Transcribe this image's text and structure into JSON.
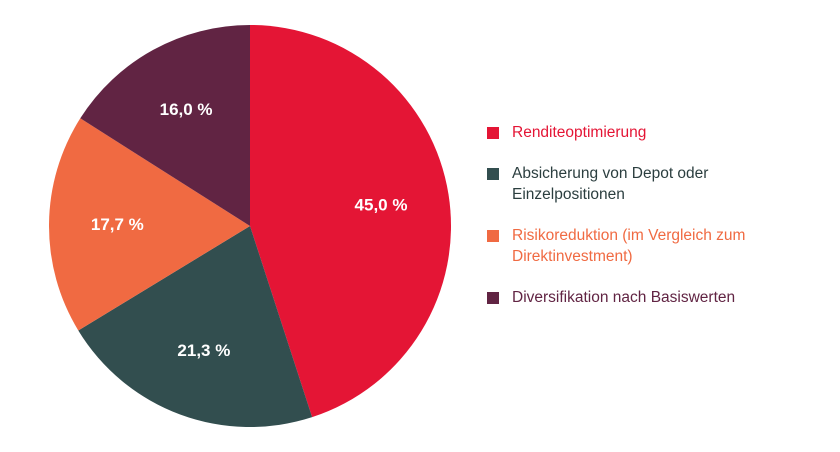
{
  "chart_data": {
    "type": "pie",
    "slices": [
      {
        "label": "Renditeoptimierung",
        "value": 45.0,
        "display": "45,0 %",
        "color": "#e41535",
        "legend_text_color": "#e41535"
      },
      {
        "label": "Absicherung von Depot oder Einzelpositionen",
        "value": 21.3,
        "display": "21,3 %",
        "color": "#324e4f",
        "legend_text_color": "#2b3e3f"
      },
      {
        "label": "Risikoreduktion (im Vergleich zum Direktinvestment)",
        "value": 17.7,
        "display": "17,7 %",
        "color": "#f06a42",
        "legend_text_color": "#f06a42"
      },
      {
        "label": "Diversifikation nach Basiswerten",
        "value": 16.0,
        "display": "16,0 %",
        "color": "#612443",
        "legend_text_color": "#612443"
      }
    ],
    "start_angle": "12 o'clock",
    "direction": "clockwise",
    "legend_position": "right"
  }
}
